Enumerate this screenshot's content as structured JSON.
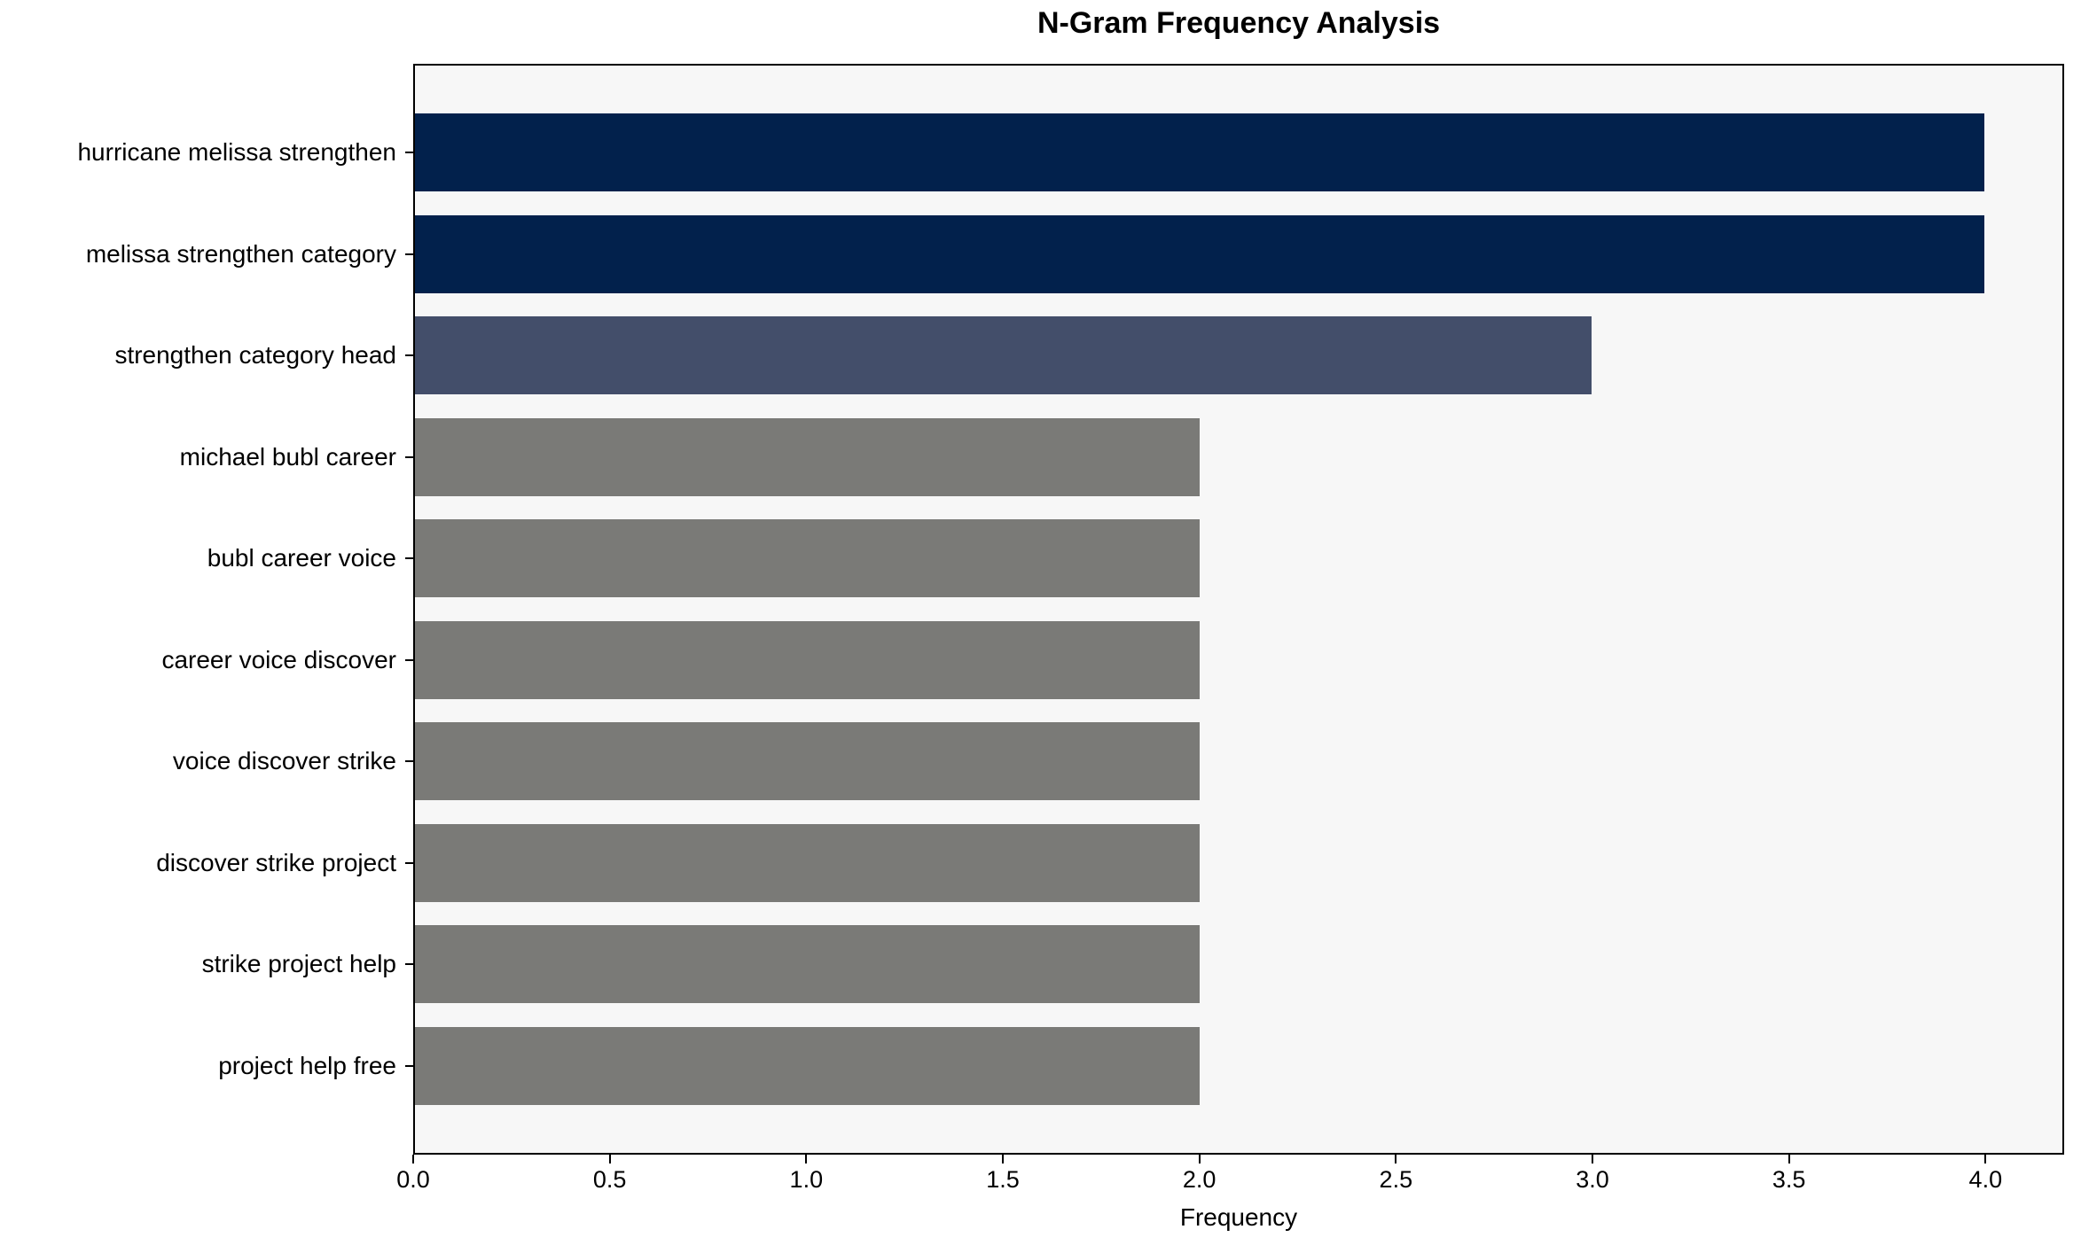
{
  "chart_data": {
    "type": "bar",
    "orientation": "horizontal",
    "title": "N-Gram Frequency Analysis",
    "xlabel": "Frequency",
    "ylabel": "",
    "categories": [
      "hurricane melissa strengthen",
      "melissa strengthen category",
      "strengthen category head",
      "michael bubl career",
      "bubl career voice",
      "career voice discover",
      "voice discover strike",
      "discover strike project",
      "strike project help",
      "project help free"
    ],
    "values": [
      4,
      4,
      3,
      2,
      2,
      2,
      2,
      2,
      2,
      2
    ],
    "bar_colors": [
      "#02214c",
      "#02214c",
      "#434e6a",
      "#7a7a77",
      "#7a7a77",
      "#7a7a77",
      "#7a7a77",
      "#7a7a77",
      "#7a7a77",
      "#7a7a77"
    ],
    "xlim": [
      0,
      4.2
    ],
    "xticks": [
      "0.0",
      "0.5",
      "1.0",
      "1.5",
      "2.0",
      "2.5",
      "3.0",
      "3.5",
      "4.0"
    ],
    "xtick_values": [
      0.0,
      0.5,
      1.0,
      1.5,
      2.0,
      2.5,
      3.0,
      3.5,
      4.0
    ],
    "grid": false,
    "legend": null,
    "plot_background": "#f7f7f7",
    "figure_background": "#ffffff",
    "frame_color": "#000000"
  }
}
